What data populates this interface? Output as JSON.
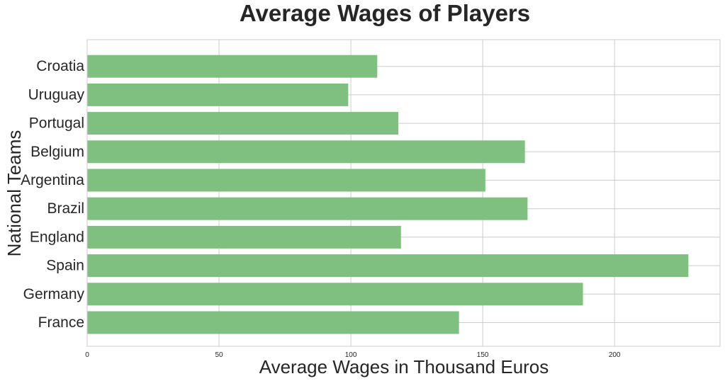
{
  "chart_data": {
    "type": "bar",
    "orientation": "horizontal",
    "title": "Average Wages of Players",
    "xlabel": "Average Wages in Thousand Euros",
    "ylabel": "National Teams",
    "categories": [
      "France",
      "Germany",
      "Spain",
      "England",
      "Brazil",
      "Argentina",
      "Belgium",
      "Portugal",
      "Uruguay",
      "Croatia"
    ],
    "values": [
      141,
      188,
      228,
      119,
      167,
      151,
      166,
      118,
      99,
      110
    ],
    "xlim": [
      0,
      240
    ],
    "xticks": [
      0,
      50,
      100,
      150,
      200
    ],
    "grid": true,
    "colors": {
      "bar": "#7fbf7f",
      "grid": "#cccccc",
      "text": "#262626"
    }
  }
}
